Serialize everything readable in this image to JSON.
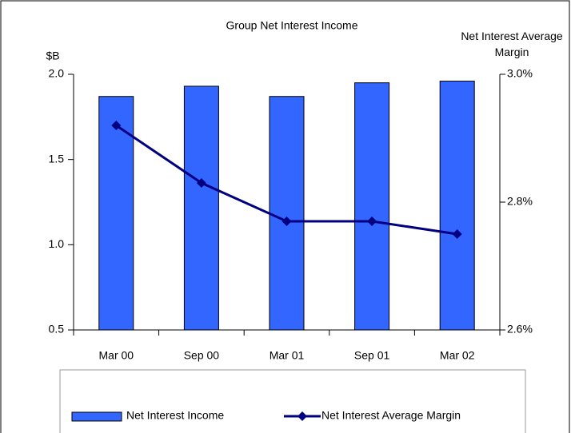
{
  "chart_data": {
    "type": "combo",
    "title": "Group Net Interest Income",
    "ylabel": "$B",
    "y2label": "Net Interest Average Margin",
    "categories": [
      "Mar 00",
      "Sep 00",
      "Mar 01",
      "Sep 01",
      "Mar 02"
    ],
    "series": [
      {
        "name": "Net Interest Income",
        "type": "bar",
        "color": "#3366ff",
        "values": [
          1.87,
          1.93,
          1.87,
          1.95,
          1.96
        ]
      },
      {
        "name": "Net Interest Average Margin",
        "type": "line",
        "axis": "y2",
        "color": "#000080",
        "values": [
          2.92,
          2.83,
          2.77,
          2.77,
          2.75
        ]
      }
    ],
    "ylim": [
      0.5,
      2.0
    ],
    "yticks": [
      0.5,
      {
        "value": 1,
        "label": "1.0"
      },
      1.5,
      {
        "value": 2,
        "label": "2.0"
      }
    ],
    "y2lim": [
      2.6,
      3.0
    ],
    "y2ticks": [
      {
        "value": 2.6,
        "label": "2.6%"
      },
      {
        "value": 2.8,
        "label": "2.8%"
      },
      {
        "value": 3.0,
        "label": "3.0%"
      }
    ],
    "grid": false,
    "legend": "bottom"
  }
}
